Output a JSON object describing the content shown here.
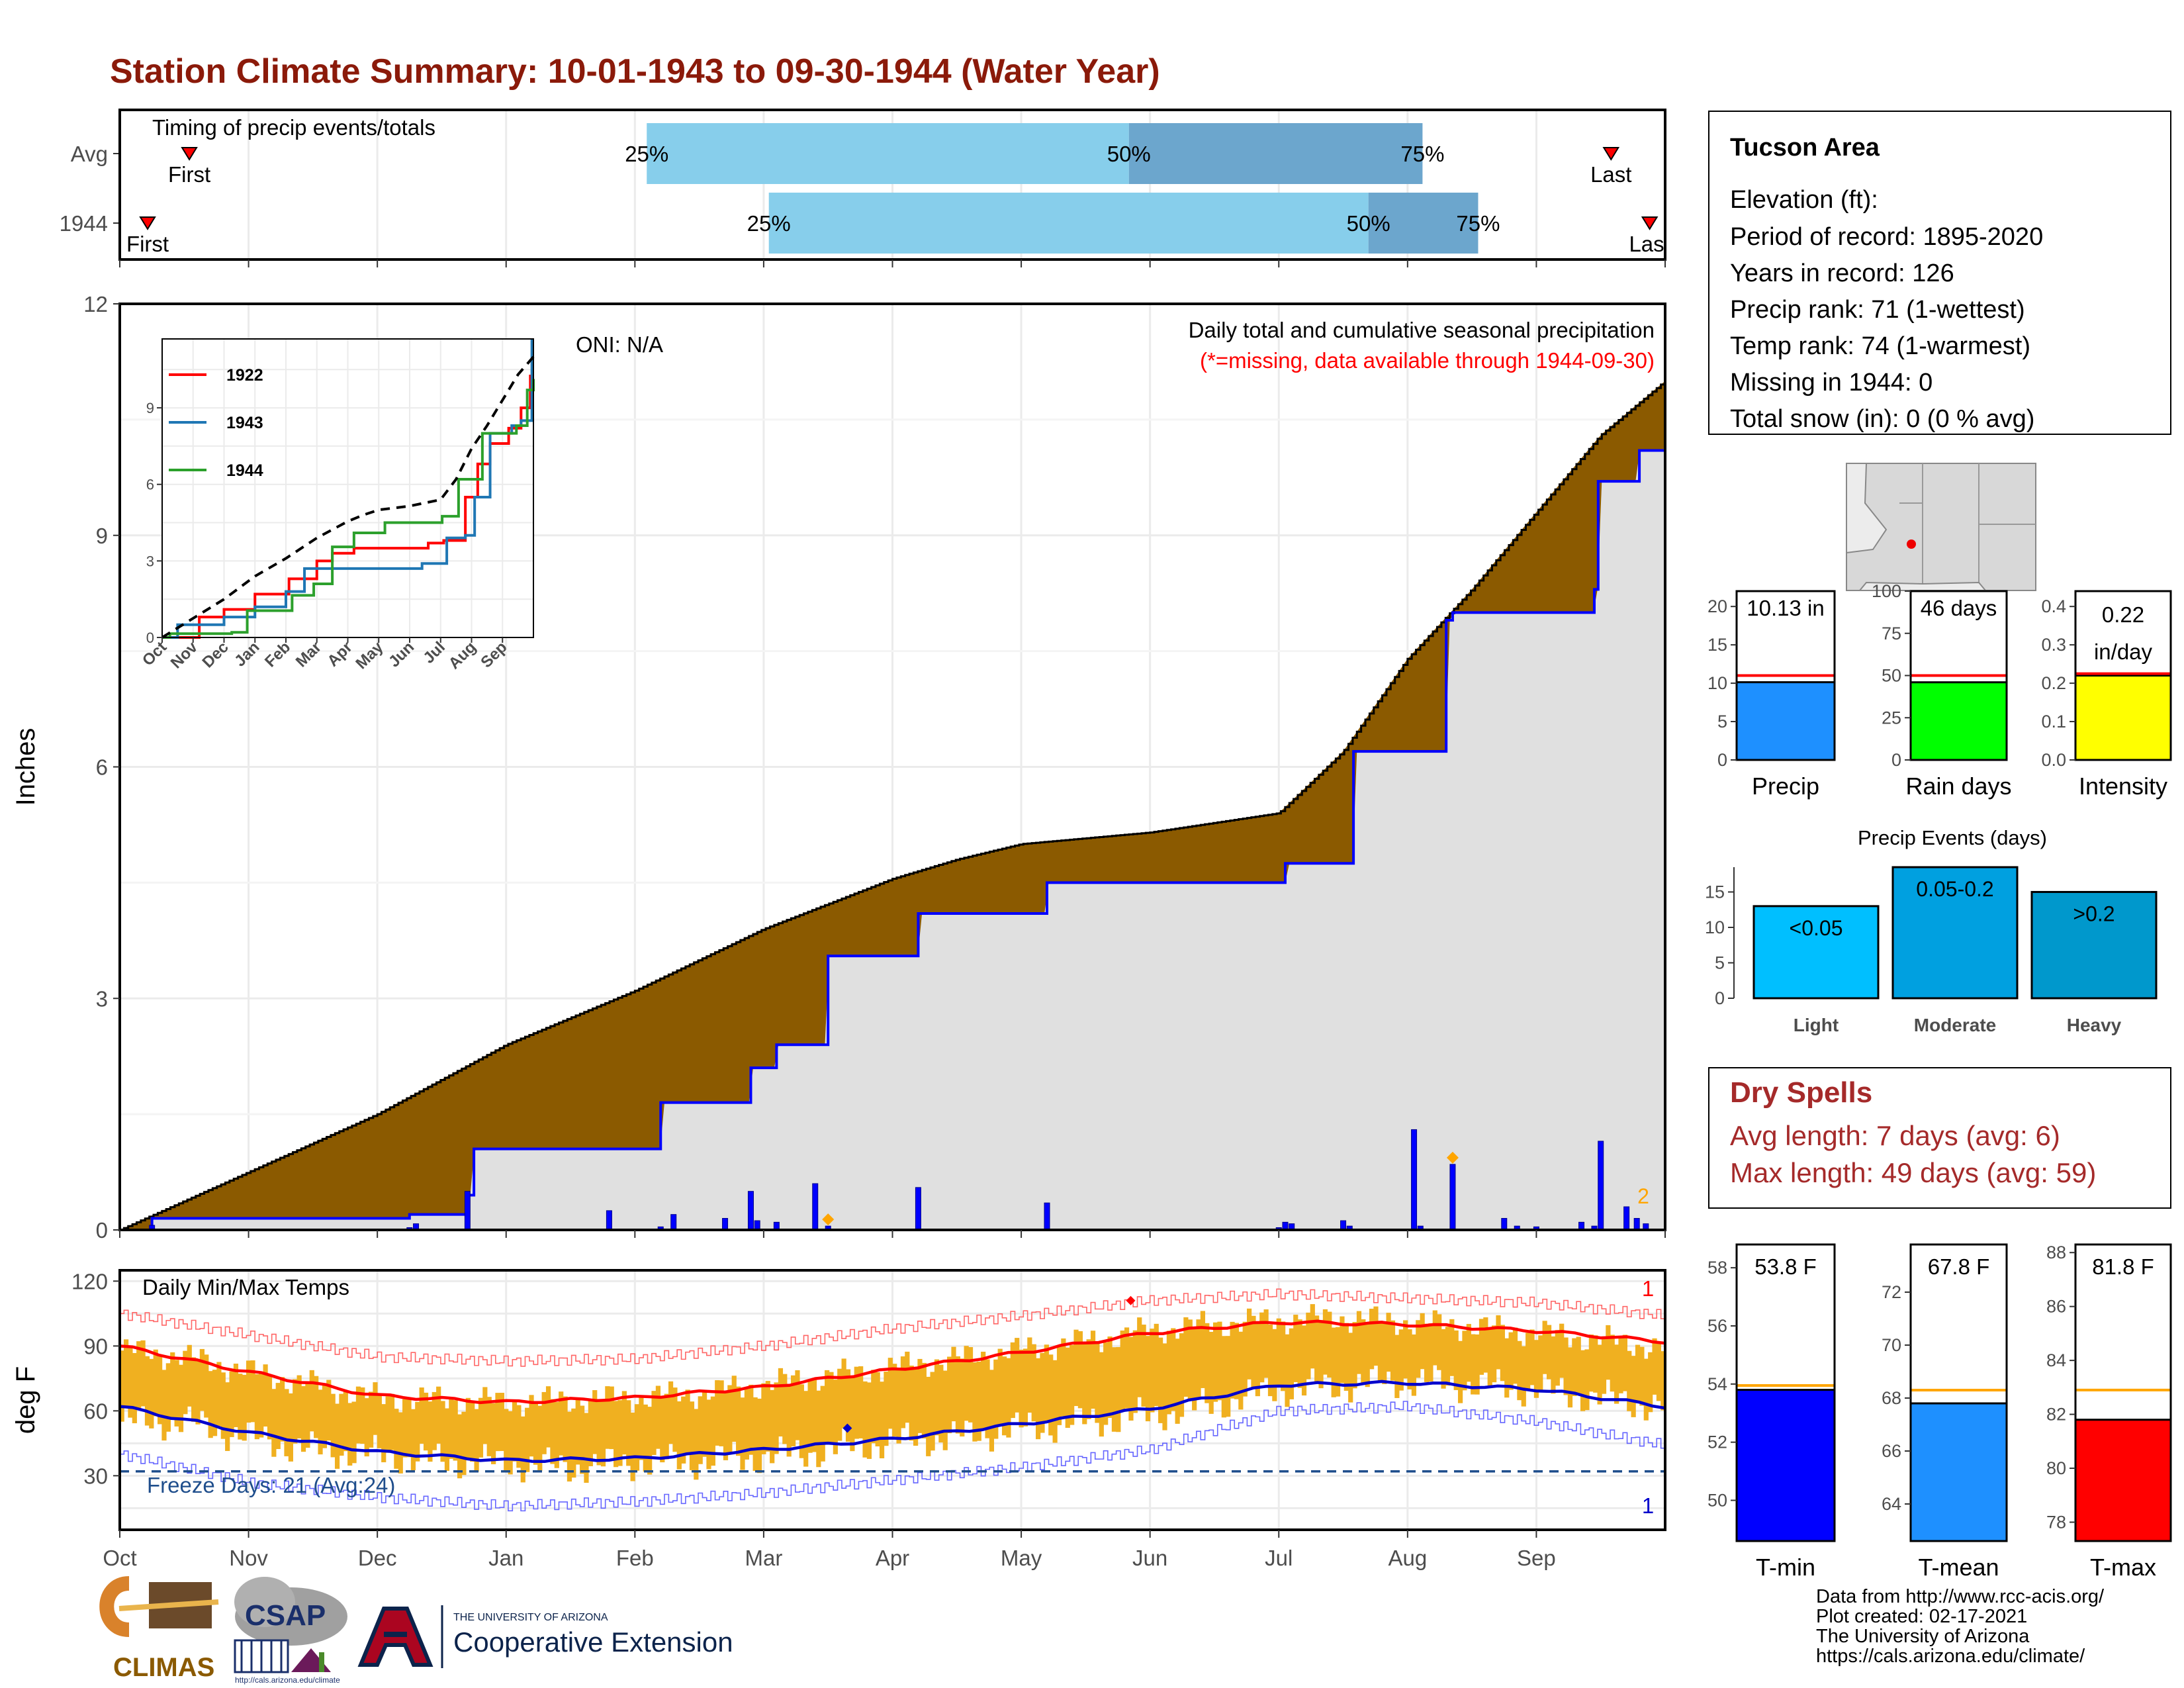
{
  "title": "Station Climate Summary: 10-01-1943 to 09-30-1944 (Water Year)",
  "colors": {
    "title": "#8b1a0a",
    "departure_fill": "#8b5a00",
    "below_fill": "#e0e0e0",
    "current_line": "#0000ff",
    "light_blue": "#87ceeb",
    "mid_blue": "#6ca6cd",
    "temp_bar": "#f0b020",
    "tmax_avg": "#ff0000",
    "tmin_avg": "#0000cc",
    "freeze_line": "#1f4e8c",
    "dry_spell": "#a52a2a",
    "orange_marker": "#ffa500"
  },
  "timing": {
    "label": "Timing of precip events/totals",
    "rows": [
      {
        "name": "Avg",
        "first_label": "First",
        "last_label": "Last",
        "first": 0.045,
        "last": 0.965,
        "bar_start": 0.341,
        "bar_mid": 0.653,
        "bar_end": 0.843,
        "q25": "25%",
        "q50": "50%",
        "q75": "75%"
      },
      {
        "name": "1944",
        "first_label": "First",
        "last_label": "Last",
        "first": 0.018,
        "last": 0.99,
        "bar_start": 0.42,
        "bar_mid": 0.808,
        "bar_end": 0.879,
        "q25": "25%",
        "q50": "50%",
        "q75": "75%"
      }
    ]
  },
  "main": {
    "ylabel": "Inches",
    "caption1": "Daily total and cumulative seasonal precipitation",
    "caption2": "(*=missing, data available through 1944-09-30)",
    "oni": "ONI: N/A",
    "yticks": [
      "0",
      "3",
      "6",
      "9",
      "12"
    ],
    "extreme_count": "2"
  },
  "chart_data": [
    {
      "type": "area",
      "name": "cumulative precipitation",
      "ylim": [
        0,
        12
      ],
      "y_unit": "inches",
      "x_unit": "month of water year",
      "avg_cumulative": {
        "x": [
          0,
          1,
          2,
          3,
          4,
          5,
          6,
          6.5,
          7,
          8,
          9,
          9.5,
          10,
          10.5,
          11,
          11.5,
          12
        ],
        "y": [
          0,
          0.75,
          1.5,
          2.4,
          3.1,
          3.9,
          4.55,
          4.8,
          5.0,
          5.15,
          5.4,
          6.2,
          7.4,
          8.3,
          9.3,
          10.3,
          11.0
        ]
      },
      "cumulative_1944": {
        "x": [
          0,
          0.25,
          2.25,
          2.7,
          2.75,
          3.75,
          4.2,
          4.8,
          4.9,
          5.1,
          5.5,
          6.2,
          7.2,
          9.0,
          9.05,
          9.55,
          9.58,
          10.05,
          10.3,
          10.35,
          10.75,
          11.45,
          11.48,
          11.8,
          12
        ],
        "y": [
          0,
          0.15,
          0.2,
          0.45,
          1.05,
          1.05,
          1.65,
          1.65,
          2.1,
          2.4,
          3.55,
          4.1,
          4.5,
          4.5,
          4.75,
          4.75,
          6.2,
          6.2,
          7.9,
          8.0,
          8.0,
          8.3,
          9.7,
          10.1,
          10.13
        ]
      },
      "daily": {
        "x": [
          0.25,
          2.25,
          2.3,
          2.7,
          3.8,
          4.2,
          4.3,
          4.7,
          4.9,
          4.95,
          5.1,
          5.4,
          5.5,
          6.2,
          7.2,
          9.0,
          9.05,
          9.1,
          9.5,
          9.55,
          10.05,
          10.1,
          10.35,
          10.75,
          10.85,
          11.0,
          11.35,
          11.45,
          11.5,
          11.7,
          11.78,
          11.85
        ],
        "y": [
          0.06,
          0.03,
          0.08,
          0.5,
          0.25,
          0.04,
          0.2,
          0.15,
          0.5,
          0.12,
          0.1,
          0.6,
          0.05,
          0.55,
          0.35,
          0.03,
          0.1,
          0.08,
          0.12,
          0.05,
          1.3,
          0.05,
          0.85,
          0.15,
          0.05,
          0.04,
          0.1,
          0.05,
          1.15,
          0.3,
          0.15,
          0.08
        ]
      },
      "extreme_markers": [
        5.5,
        10.35
      ]
    },
    {
      "type": "line",
      "name": "inset cumulative comparison",
      "categories": [
        "Oct",
        "Nov",
        "Dec",
        "Jan",
        "Feb",
        "Mar",
        "Apr",
        "May",
        "Jun",
        "Jul",
        "Aug",
        "Sep"
      ],
      "yticks": [
        0,
        3,
        6,
        9
      ],
      "ylim": [
        0,
        11.7
      ],
      "series": [
        {
          "name": "1922",
          "color": "#ff0000",
          "x": [
            0,
            1.2,
            2,
            3,
            4.1,
            5,
            5.5,
            6.2,
            8,
            8.6,
            9.1,
            9.8,
            10.2,
            10.6,
            11.2,
            11.6,
            11.9
          ],
          "y": [
            0,
            0.8,
            1.1,
            1.7,
            2.3,
            3.0,
            3.3,
            3.5,
            3.5,
            3.7,
            3.8,
            5.5,
            6.8,
            7.6,
            8.2,
            9.0,
            10.3
          ]
        },
        {
          "name": "1943",
          "color": "#1f77b4",
          "x": [
            0,
            0.5,
            2,
            3,
            4,
            4.6,
            5,
            5.7,
            7,
            8.4,
            9.2,
            9.8,
            10.1,
            10.6,
            11.3,
            11.6,
            11.95
          ],
          "y": [
            0,
            0.5,
            0.8,
            1.2,
            1.8,
            2.7,
            2.7,
            2.7,
            2.7,
            2.9,
            3.9,
            4.0,
            5.5,
            8.0,
            8.3,
            8.5,
            11.7
          ]
        },
        {
          "name": "1944",
          "color": "#2ca02c",
          "x": [
            0,
            0.25,
            2.25,
            2.75,
            3.75,
            4.2,
            4.9,
            5.5,
            6.2,
            7.2,
            9.05,
            9.58,
            10.05,
            10.35,
            11.45,
            11.8,
            12
          ],
          "y": [
            0,
            0.15,
            0.2,
            1.05,
            1.05,
            1.65,
            2.1,
            3.55,
            4.1,
            4.5,
            4.75,
            6.2,
            6.2,
            8.0,
            8.3,
            9.7,
            10.13
          ]
        },
        {
          "name": "avg",
          "color": "#000000",
          "dashed": true,
          "x": [
            0,
            1,
            2,
            3,
            4,
            5,
            6,
            6.5,
            7,
            8,
            9,
            9.5,
            10,
            10.5,
            11,
            11.5,
            12
          ],
          "y": [
            0,
            0.75,
            1.5,
            2.4,
            3.1,
            3.9,
            4.55,
            4.8,
            5.0,
            5.15,
            5.4,
            6.2,
            7.4,
            8.3,
            9.3,
            10.3,
            11.0
          ]
        }
      ]
    },
    {
      "type": "line",
      "name": "Daily Min/Max Temps",
      "ylabel": "deg F",
      "ylim": [
        5,
        125
      ],
      "yticks": [
        30,
        60,
        90,
        120
      ],
      "months": [
        "Oct",
        "Nov",
        "Dec",
        "Jan",
        "Feb",
        "Mar",
        "Apr",
        "May",
        "Jun",
        "Jul",
        "Aug",
        "Sep"
      ],
      "title": "Daily Min/Max Temps",
      "freeze_label": "Freeze Days: 21 (Avg:24)",
      "freeze_line": 32,
      "record_high_count": "1",
      "record_low_count": "1",
      "avg_high": {
        "x": [
          0,
          1,
          2,
          3,
          4,
          5,
          6,
          7,
          8,
          9,
          10,
          11,
          12
        ],
        "y": [
          90,
          78,
          67,
          64,
          66,
          71,
          79,
          87,
          96,
          101,
          100,
          97,
          92
        ]
      },
      "avg_low": {
        "x": [
          0,
          1,
          2,
          3,
          4,
          5,
          6,
          7,
          8,
          9,
          10,
          11,
          12
        ],
        "y": [
          62,
          50,
          41,
          37,
          38,
          42,
          47,
          54,
          61,
          72,
          73,
          70,
          62
        ]
      },
      "record_high": {
        "x": [
          0,
          1,
          2,
          3,
          4,
          5,
          6,
          7,
          8,
          9,
          10,
          11,
          12
        ],
        "y": [
          105,
          95,
          85,
          83,
          84,
          90,
          98,
          104,
          111,
          114,
          112,
          110,
          104
        ]
      },
      "record_low": {
        "x": [
          0,
          1,
          2,
          3,
          4,
          5,
          6,
          7,
          8,
          9,
          10,
          11,
          12
        ],
        "y": [
          40,
          27,
          20,
          16,
          18,
          22,
          28,
          34,
          42,
          60,
          62,
          55,
          44
        ]
      },
      "daily_range_1944": {
        "x": [
          0,
          0.5,
          1,
          1.5,
          2,
          2.5,
          3,
          3.5,
          4,
          4.5,
          5,
          5.5,
          6,
          6.5,
          7,
          7.5,
          8,
          8.5,
          9,
          9.5,
          10,
          10.5,
          11,
          11.5,
          12
        ],
        "low": [
          55,
          55,
          48,
          42,
          40,
          37,
          36,
          34,
          36,
          37,
          39,
          42,
          46,
          48,
          52,
          55,
          58,
          63,
          70,
          72,
          74,
          72,
          70,
          66,
          62
        ],
        "high": [
          88,
          85,
          78,
          72,
          66,
          65,
          64,
          65,
          66,
          68,
          72,
          76,
          80,
          84,
          88,
          92,
          97,
          100,
          102,
          103,
          101,
          99,
          96,
          93,
          89
        ]
      }
    },
    {
      "type": "bar",
      "name": "Precip",
      "value": 10.13,
      "label": "10.13 in",
      "avg": 11.0,
      "ylim": [
        0,
        22
      ],
      "yticks": [
        0,
        5,
        10,
        15,
        20
      ],
      "color": "#1e90ff"
    },
    {
      "type": "bar",
      "name": "Rain days",
      "value": 46,
      "label": "46 days",
      "avg": 50,
      "ylim": [
        0,
        100
      ],
      "yticks": [
        0,
        25,
        50,
        75,
        100
      ],
      "color": "#00ff00"
    },
    {
      "type": "bar",
      "name": "Intensity",
      "value": 0.22,
      "label": "0.22",
      "label2": "in/day",
      "avg": 0.225,
      "ylim": [
        0,
        0.44
      ],
      "yticks": [
        0.0,
        0.1,
        0.2,
        0.3,
        0.4
      ],
      "ytick_labels": [
        "0.0",
        "0.1",
        "0.2",
        "0.3",
        "0.4"
      ],
      "color": "#ffff00"
    },
    {
      "type": "bar",
      "name": "Precip Events (days)",
      "title": "Precip Events (days)",
      "categories": [
        "Light",
        "Moderate",
        "Heavy"
      ],
      "values": [
        13,
        18.5,
        15
      ],
      "bar_labels": [
        "<0.05",
        "0.05-0.2",
        ">0.2"
      ],
      "colors": [
        "#00bfff",
        "#00a0e0",
        "#0098cc"
      ],
      "ylim": [
        0,
        18.5
      ],
      "yticks": [
        0,
        5,
        10,
        15
      ]
    },
    {
      "type": "bar",
      "name": "T-min",
      "value": 53.8,
      "label": "53.8 F",
      "avg": 53.95,
      "ylim": [
        48.6,
        58.8
      ],
      "yticks": [
        50,
        52,
        54,
        56,
        58
      ],
      "color": "#0000ff"
    },
    {
      "type": "bar",
      "name": "T-mean",
      "value": 67.8,
      "label": "67.8 F",
      "avg": 68.3,
      "ylim": [
        62.6,
        73.8
      ],
      "yticks": [
        64,
        66,
        68,
        70,
        72
      ],
      "color": "#1e90ff"
    },
    {
      "type": "bar",
      "name": "T-max",
      "value": 81.8,
      "label": "81.8 F",
      "avg": 82.9,
      "ylim": [
        77.3,
        88.3
      ],
      "yticks": [
        78,
        80,
        82,
        84,
        86,
        88
      ],
      "color": "#ff0000"
    }
  ],
  "info": {
    "station": "Tucson Area",
    "lines": [
      "Elevation (ft):",
      "Period of record: 1895-2020",
      "Years in record: 126",
      "Precip rank: 71 (1-wettest)",
      "Temp rank: 74 (1-warmest)",
      "Missing in 1944: 0",
      "Total snow (in): 0 (0 % avg)"
    ]
  },
  "dry_spells": {
    "title": "Dry Spells",
    "avg_length": "Avg length: 7 days (avg: 6)",
    "max_length": "Max length: 49 days (avg: 59)"
  },
  "footer": {
    "credits": [
      "Data from http://www.rcc-acis.org/",
      "Plot created: 02-17-2021",
      "The University of Arizona",
      "https://cals.arizona.edu/climate/"
    ],
    "logo_climas": "CLIMAS",
    "logo_csap": "CSAP",
    "csap_url": "http://cals.arizona.edu/climate",
    "ua_small": "THE UNIVERSITY OF ARIZONA",
    "ua_big": "Cooperative Extension"
  }
}
